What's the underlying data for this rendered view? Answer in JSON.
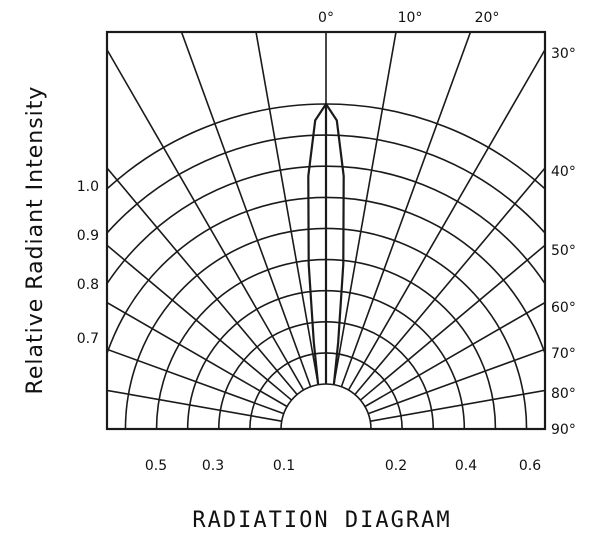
{
  "chart_data": {
    "type": "polar",
    "title": "RADIATION DIAGRAM",
    "ylabel": "Relative Radiant Intensity",
    "angle_unit": "degrees",
    "angle_range": [
      -90,
      90
    ],
    "radius_range": [
      0,
      1.0
    ],
    "grid": true,
    "angle_ticks": [
      "0°",
      "10°",
      "20°",
      "30°",
      "40°",
      "50°",
      "60°",
      "70°",
      "80°",
      "90°"
    ],
    "angle_values": [
      0,
      10,
      20,
      30,
      40,
      50,
      60,
      70,
      80,
      90
    ],
    "intensity_ticks_left": [
      "1.0",
      "0.9",
      "0.8",
      "0.7"
    ],
    "intensity_values_left": [
      1.0,
      0.9,
      0.8,
      0.7
    ],
    "bottom_ticks": [
      "0.5",
      "0.3",
      "0.1",
      "0.2",
      "0.4",
      "0.6"
    ],
    "series": [
      {
        "angles": [
          -10,
          -8,
          -6,
          -4,
          -2,
          0,
          2,
          4,
          6,
          8,
          10
        ],
        "values": [
          0.14,
          0.27,
          0.51,
          0.78,
          0.95,
          1.0,
          0.95,
          0.78,
          0.51,
          0.27,
          0.14
        ]
      }
    ]
  }
}
